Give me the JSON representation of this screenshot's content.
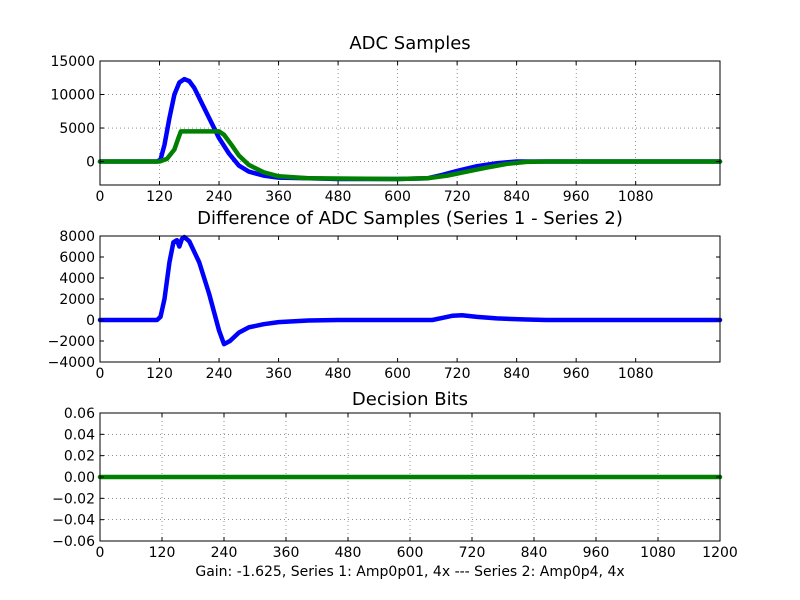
{
  "caption": "Gain: -1.625, Series 1: Amp0p01, 4x --- Series 2: Amp0p4, 4x",
  "chart_data": [
    {
      "type": "line",
      "title": "ADC Samples",
      "xlim": [
        0,
        1250
      ],
      "ylim": [
        -3500,
        15000
      ],
      "xticks": [
        0,
        120,
        240,
        360,
        480,
        600,
        720,
        840,
        960,
        1080
      ],
      "yticks": [
        0,
        5000,
        10000,
        15000
      ],
      "grid": true,
      "series": [
        {
          "color": "#0000ff",
          "points": [
            [
              0,
              0
            ],
            [
              115,
              0
            ],
            [
              122,
              300
            ],
            [
              130,
              2500
            ],
            [
              140,
              6500
            ],
            [
              150,
              10000
            ],
            [
              160,
              11800
            ],
            [
              170,
              12300
            ],
            [
              180,
              12000
            ],
            [
              190,
              11000
            ],
            [
              200,
              9500
            ],
            [
              220,
              6500
            ],
            [
              240,
              3500
            ],
            [
              260,
              1200
            ],
            [
              280,
              -600
            ],
            [
              300,
              -1500
            ],
            [
              330,
              -2100
            ],
            [
              360,
              -2400
            ],
            [
              420,
              -2500
            ],
            [
              480,
              -2600
            ],
            [
              600,
              -2600
            ],
            [
              660,
              -2500
            ],
            [
              690,
              -2000
            ],
            [
              720,
              -1400
            ],
            [
              760,
              -700
            ],
            [
              800,
              -250
            ],
            [
              840,
              0
            ],
            [
              900,
              0
            ],
            [
              1250,
              0
            ]
          ]
        },
        {
          "color": "#008000",
          "points": [
            [
              0,
              0
            ],
            [
              120,
              0
            ],
            [
              135,
              400
            ],
            [
              150,
              1800
            ],
            [
              158,
              3500
            ],
            [
              163,
              4500
            ],
            [
              240,
              4500
            ],
            [
              250,
              4000
            ],
            [
              265,
              2500
            ],
            [
              280,
              900
            ],
            [
              300,
              -500
            ],
            [
              330,
              -1600
            ],
            [
              360,
              -2200
            ],
            [
              420,
              -2500
            ],
            [
              600,
              -2600
            ],
            [
              660,
              -2500
            ],
            [
              700,
              -2100
            ],
            [
              740,
              -1500
            ],
            [
              780,
              -900
            ],
            [
              820,
              -350
            ],
            [
              860,
              -50
            ],
            [
              900,
              0
            ],
            [
              1250,
              0
            ]
          ]
        }
      ]
    },
    {
      "type": "line",
      "title": "Difference of ADC Samples (Series 1 - Series 2)",
      "xlim": [
        0,
        1250
      ],
      "ylim": [
        -4000,
        8000
      ],
      "xticks": [
        0,
        120,
        240,
        360,
        480,
        600,
        720,
        840,
        960,
        1080
      ],
      "yticks": [
        -4000,
        -2000,
        0,
        2000,
        4000,
        6000,
        8000
      ],
      "grid": false,
      "series": [
        {
          "color": "#0000ff",
          "points": [
            [
              0,
              0
            ],
            [
              115,
              0
            ],
            [
              122,
              300
            ],
            [
              130,
              2000
            ],
            [
              140,
              5500
            ],
            [
              148,
              7400
            ],
            [
              155,
              7600
            ],
            [
              160,
              7000
            ],
            [
              165,
              7700
            ],
            [
              170,
              7900
            ],
            [
              180,
              7500
            ],
            [
              200,
              5500
            ],
            [
              220,
              2500
            ],
            [
              240,
              -1000
            ],
            [
              250,
              -2300
            ],
            [
              262,
              -2000
            ],
            [
              280,
              -1200
            ],
            [
              300,
              -700
            ],
            [
              330,
              -400
            ],
            [
              360,
              -200
            ],
            [
              420,
              -50
            ],
            [
              480,
              0
            ],
            [
              670,
              0
            ],
            [
              690,
              200
            ],
            [
              710,
              400
            ],
            [
              730,
              450
            ],
            [
              760,
              300
            ],
            [
              800,
              150
            ],
            [
              860,
              50
            ],
            [
              900,
              0
            ],
            [
              1250,
              0
            ]
          ]
        }
      ]
    },
    {
      "type": "line",
      "title": "Decision Bits",
      "xlim": [
        0,
        1200
      ],
      "ylim": [
        -0.06,
        0.06
      ],
      "xticks": [
        0,
        120,
        240,
        360,
        480,
        600,
        720,
        840,
        960,
        1080,
        1200
      ],
      "yticks": [
        -0.06,
        -0.04,
        -0.02,
        0.0,
        0.02,
        0.04,
        0.06
      ],
      "ytick_labels": [
        "−0.06",
        "−0.04",
        "−0.02",
        "0.00",
        "0.02",
        "0.04",
        "0.06"
      ],
      "grid": true,
      "series": [
        {
          "color": "#008000",
          "points": [
            [
              0,
              0
            ],
            [
              1200,
              0
            ]
          ]
        }
      ]
    }
  ]
}
